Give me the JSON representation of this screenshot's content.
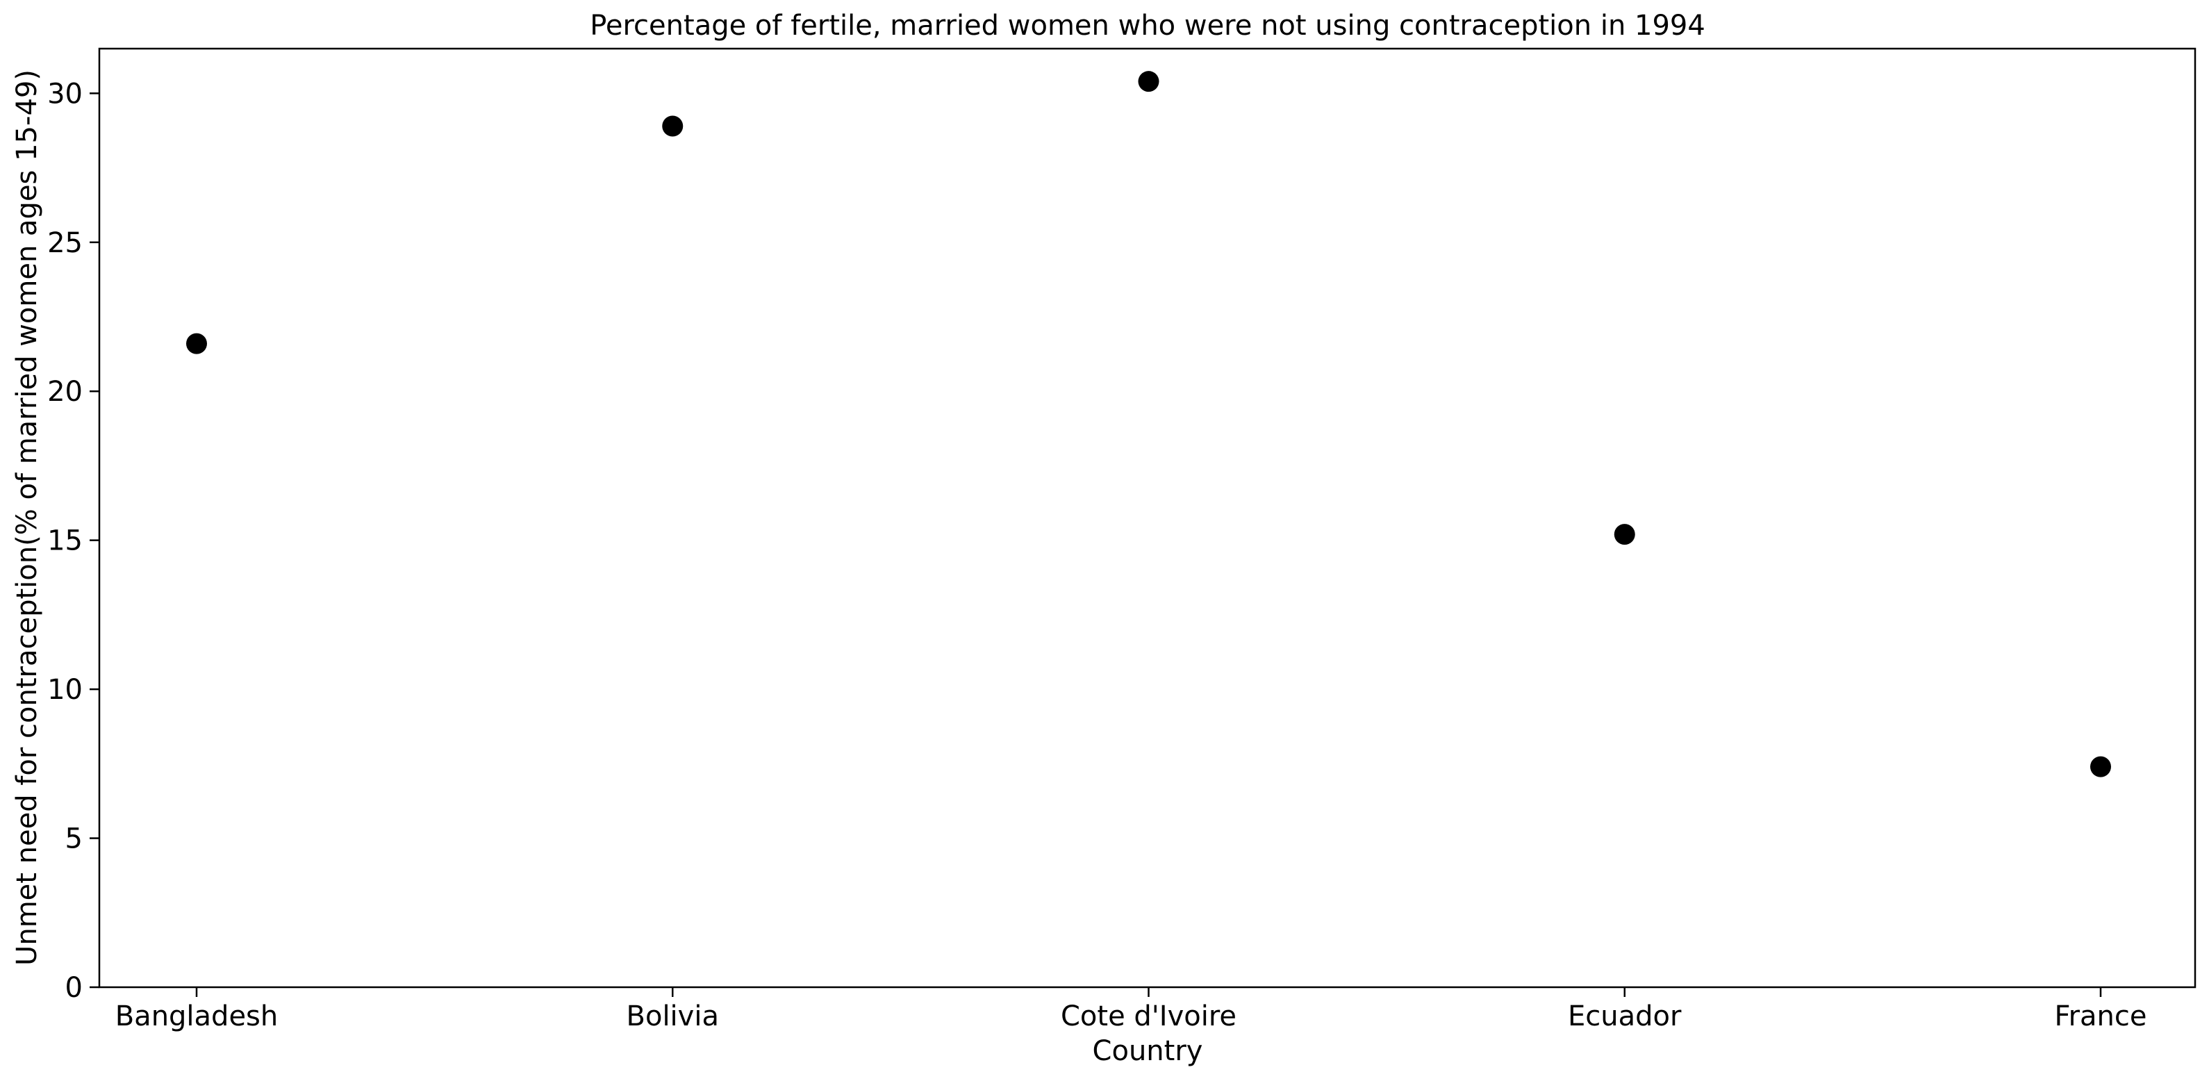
{
  "chart_data": {
    "type": "scatter",
    "title": "Percentage of fertile, married women who were not using contraception in 1994",
    "xlabel": "Country",
    "ylabel": "Unmet need for contraception(% of married women ages 15-49)",
    "categories": [
      "Bangladesh",
      "Bolivia",
      "Cote d'Ivoire",
      "Ecuador",
      "France"
    ],
    "series": [
      {
        "values": [
          21.6,
          28.9,
          30.4,
          15.2,
          7.4
        ],
        "color": "#000000"
      }
    ],
    "ylim": [
      0,
      31.5
    ],
    "yticks": [
      0,
      5,
      10,
      15,
      20,
      25,
      30
    ],
    "grid": false,
    "legend": "none"
  }
}
